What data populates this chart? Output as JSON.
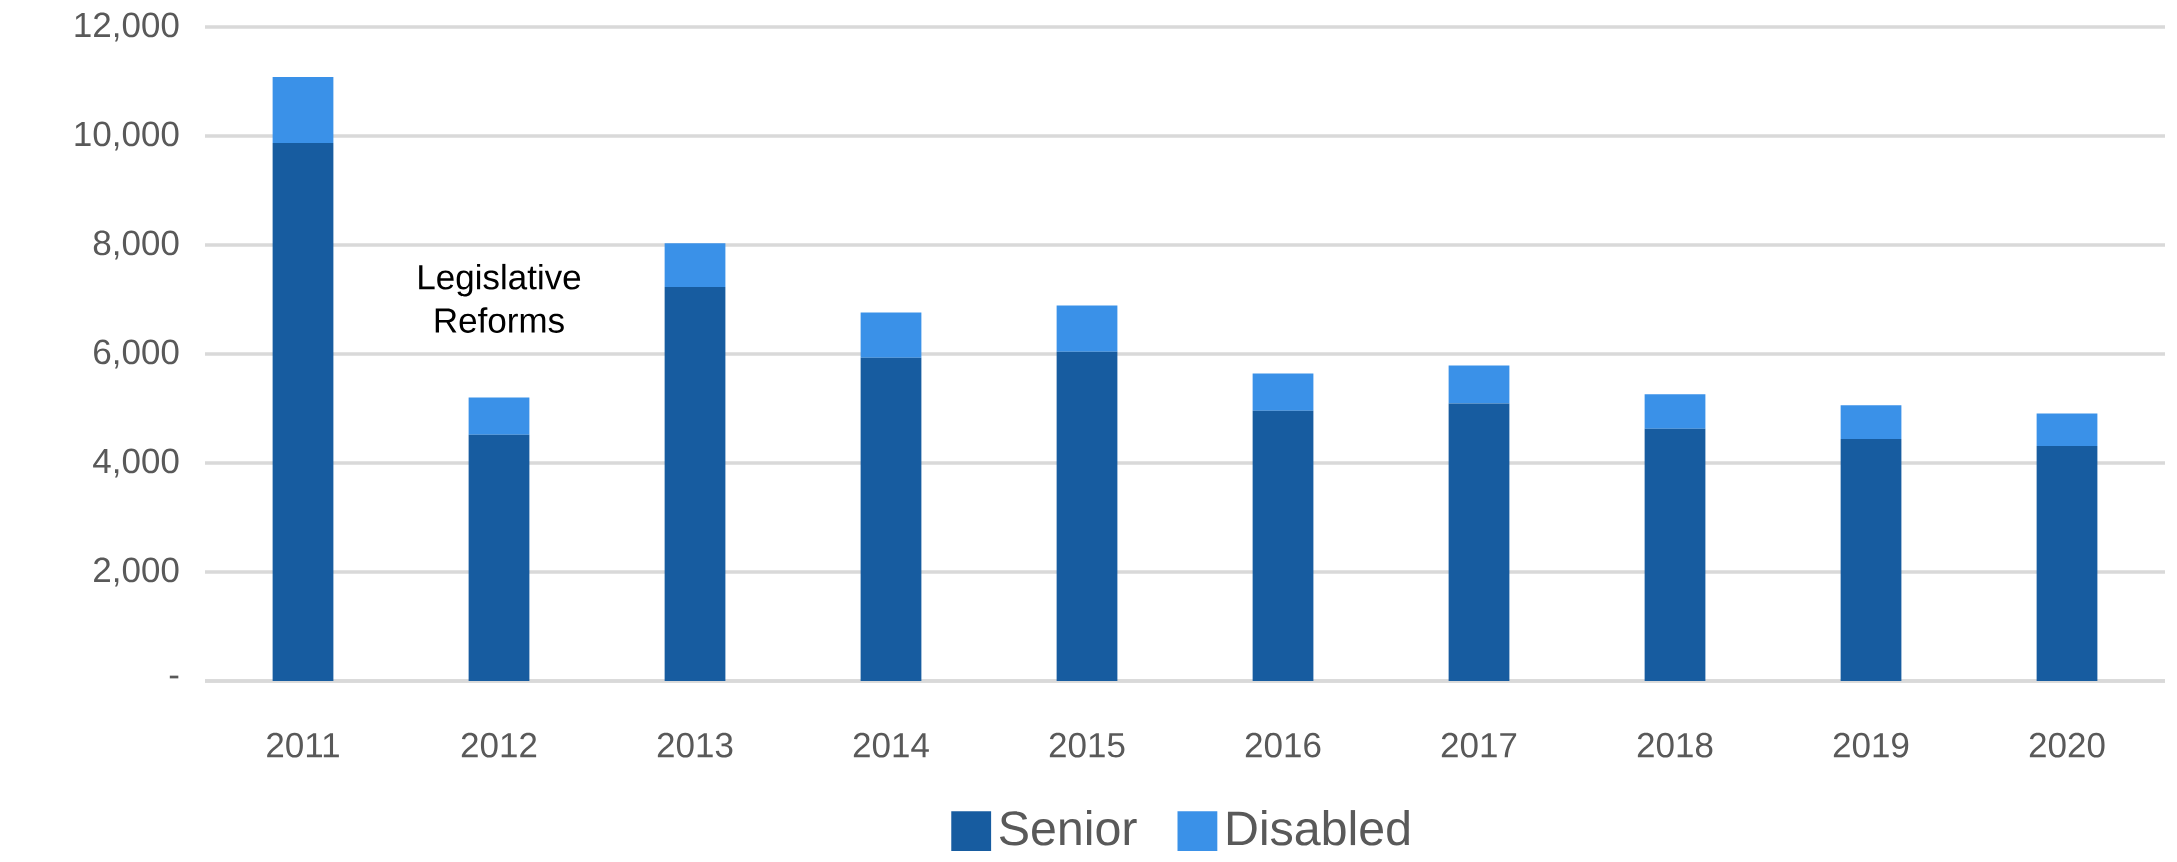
{
  "chart_data": {
    "type": "bar",
    "stacked": true,
    "categories": [
      "2011",
      "2012",
      "2013",
      "2014",
      "2015",
      "2016",
      "2017",
      "2018",
      "2019",
      "2020"
    ],
    "series": [
      {
        "name": "Senior",
        "color": "#175ca0",
        "values": [
          9870,
          4520,
          7230,
          5930,
          6040,
          4960,
          5090,
          4630,
          4440,
          4310
        ]
      },
      {
        "name": "Disabled",
        "color": "#3a91e8",
        "values": [
          1210,
          680,
          800,
          830,
          850,
          680,
          700,
          630,
          620,
          600
        ]
      }
    ],
    "ylim": [
      0,
      12000
    ],
    "yticks": [
      {
        "value": 0,
        "label": "-"
      },
      {
        "value": 2000,
        "label": "2,000"
      },
      {
        "value": 4000,
        "label": "4,000"
      },
      {
        "value": 6000,
        "label": "6,000"
      },
      {
        "value": 8000,
        "label": "8,000"
      },
      {
        "value": 10000,
        "label": "10,000"
      },
      {
        "value": 12000,
        "label": "12,000"
      }
    ],
    "grid": "y",
    "legend": "bottom",
    "annotations": [
      "Legislative Reforms"
    ]
  }
}
